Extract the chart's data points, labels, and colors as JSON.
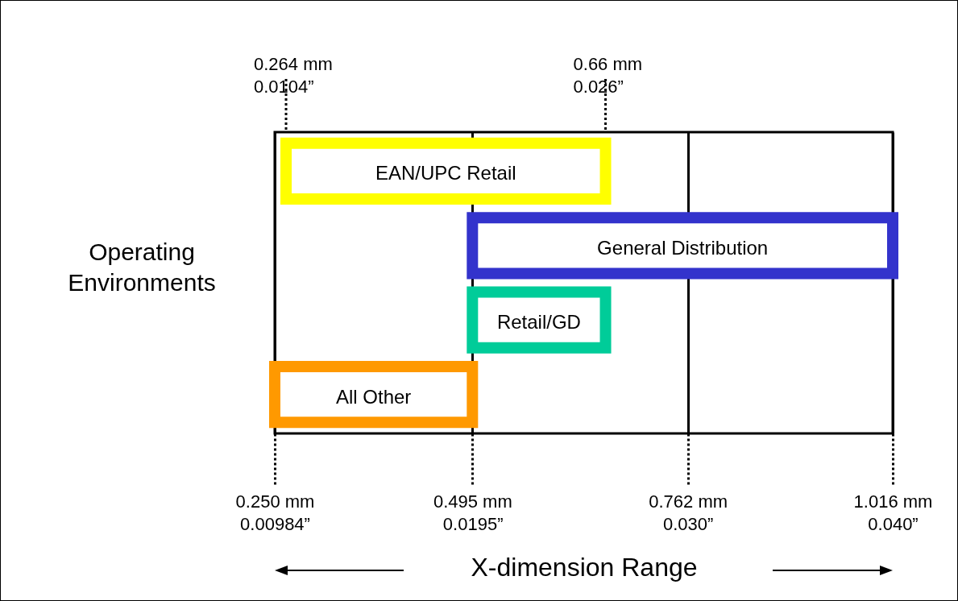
{
  "chart_data": {
    "type": "bar",
    "orientation": "horizontal",
    "xlabel": "X-dimension Range",
    "ylabel": "Operating Environments",
    "categories": [
      "EAN/UPC Retail",
      "General Distribution",
      "Retail/GD",
      "All Other"
    ],
    "base": [
      0.264,
      0.495,
      0.495,
      0.25
    ],
    "values": [
      0.396,
      0.521,
      0.165,
      0.245
    ],
    "colors": [
      "#ffff00",
      "#3333cc",
      "#00cc99",
      "#ff9900"
    ],
    "xlim": [
      0.25,
      1.016
    ],
    "xticks": [
      {
        "value": 0.25,
        "label": "0.250 mm"
      },
      {
        "value": 0.495,
        "label": "0.495 mm"
      },
      {
        "value": 0.762,
        "label": "0.762 mm"
      },
      {
        "value": 1.016,
        "label": "1.016 mm"
      }
    ],
    "x2lim": [
      0.00984,
      0.04
    ],
    "x2ticks": [
      {
        "value": 0.00984,
        "label": "0.00984”"
      },
      {
        "value": 0.0195,
        "label": "0.0195”"
      },
      {
        "value": 0.03,
        "label": "0.030”"
      },
      {
        "value": 0.04,
        "label": "0.040”"
      }
    ],
    "ref_lines": [
      {
        "axis": "x",
        "value": 0.264,
        "label": "0.264 mm\n0.0104”",
        "line_style": "dotted"
      },
      {
        "axis": "x",
        "value": 0.66,
        "label": "0.66 mm\n0.026”",
        "line_style": "dotted"
      }
    ],
    "grid": "x",
    "tick_labels": "x",
    "legend": false
  }
}
